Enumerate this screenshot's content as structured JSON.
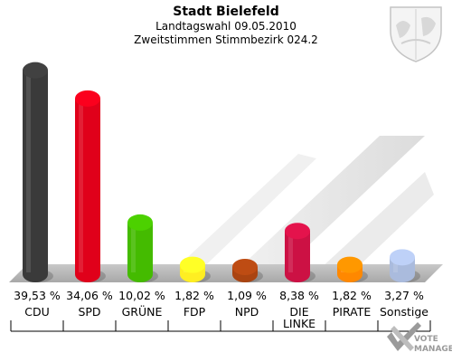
{
  "chart_data": {
    "type": "bar",
    "title": "Stadt Bielefeld",
    "subtitle": "Landtagswahl 09.05.2010",
    "subtitle2": "Zweitstimmen Stimmbezirk 024.2",
    "categories": [
      "CDU",
      "SPD",
      "GRÜNE",
      "FDP",
      "NPD",
      "DIE LINKE",
      "PIRATE",
      "Sonstige"
    ],
    "category_lines": [
      [
        "CDU"
      ],
      [
        "SPD"
      ],
      [
        "GRÜNE"
      ],
      [
        "FDP"
      ],
      [
        "NPD"
      ],
      [
        "DIE",
        "LINKE"
      ],
      [
        "PIRATE"
      ],
      [
        "Sonstige"
      ]
    ],
    "values": [
      39.53,
      34.06,
      10.02,
      1.82,
      1.09,
      8.38,
      1.82,
      3.27
    ],
    "value_labels": [
      "39,53 %",
      "34,06 %",
      "10,02 %",
      "1,82 %",
      "1,09 %",
      "8,38 %",
      "1,82 %",
      "3,27 %"
    ],
    "colors": [
      "#3a3a3a",
      "#e0001a",
      "#44bb00",
      "#ffee22",
      "#aa4411",
      "#cc1144",
      "#ff8800",
      "#aabbdd"
    ],
    "ylim": [
      0,
      40
    ],
    "grid": false,
    "legend": "none"
  },
  "branding": {
    "line1": "VOTE",
    "line2": "MANAGER",
    "logo_icon": "coat-of-arms-icon",
    "brand_icon": "check-mark-icon"
  }
}
